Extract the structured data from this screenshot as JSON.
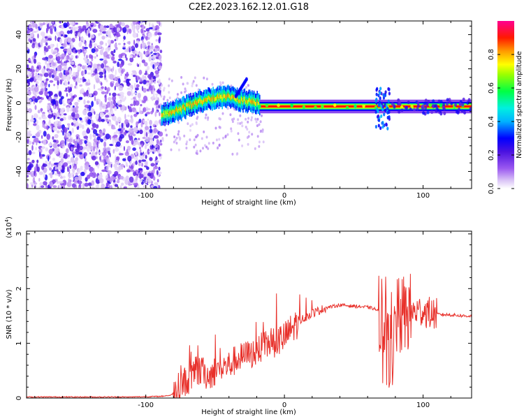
{
  "chart_data": [
    {
      "type": "heatmap",
      "title": "C2E2.2023.162.12.01.G18",
      "xlabel": "Height of straight line (km)",
      "ylabel": "Frequency (Hz)",
      "xlim": [
        -186,
        135
      ],
      "ylim": [
        -50,
        48
      ],
      "x_ticks": [
        -100,
        0,
        100
      ],
      "y_ticks": [
        -40,
        -20,
        0,
        20,
        40
      ],
      "colorbar": {
        "label": "Normalized spectral amplitude",
        "range": [
          0,
          1
        ],
        "ticks": [
          0.0,
          0.2,
          0.4,
          0.6,
          0.8
        ],
        "colormap": [
          "#ffffff",
          "#d9c2f6",
          "#7a1fe0",
          "#0000ff",
          "#00e5ff",
          "#00ff66",
          "#ffff00",
          "#ff7a00",
          "#ff0000",
          "#ff00a0"
        ]
      },
      "regions": [
        {
          "name": "noise",
          "x_range": [
            -186,
            -89
          ],
          "freq_range": [
            -50,
            48
          ],
          "amplitude": [
            0.02,
            0.25
          ]
        },
        {
          "name": "emerging",
          "x_range": [
            -89,
            -18
          ],
          "center_freq": [
            -7,
            -5,
            -3,
            0,
            2,
            3,
            4,
            2,
            1,
            0
          ],
          "amplitude": [
            0.4,
            0.8
          ]
        },
        {
          "name": "carrier",
          "x_range": [
            -18,
            135
          ],
          "center_freq": -2,
          "amplitude": [
            0.8,
            1.0
          ]
        }
      ]
    },
    {
      "type": "line",
      "xlabel": "Height of straight line (km)",
      "ylabel": "SNR (10 * v/v)",
      "multiplier": "(x10",
      "multiplier_exp": "4",
      "multiplier_close": ")",
      "xlim": [
        -186,
        135
      ],
      "ylim": [
        0,
        3.05
      ],
      "x_ticks": [
        -100,
        0,
        100
      ],
      "y_ticks": [
        0,
        1,
        2,
        3
      ],
      "color": "#e8302a",
      "series": [
        {
          "x": [
            -186,
            -150,
            -110,
            -90,
            -82,
            -78,
            -72,
            -65,
            -60,
            -55,
            -50,
            -45,
            -40,
            -35,
            -30,
            -25,
            -20,
            -15,
            -10,
            -5,
            0,
            5,
            10,
            20,
            30,
            40,
            50,
            60,
            65,
            70,
            74,
            77,
            79,
            82,
            85,
            88,
            92,
            95,
            100,
            105,
            110,
            120,
            130,
            135
          ],
          "y": [
            0.02,
            0.02,
            0.02,
            0.03,
            0.05,
            0.15,
            0.3,
            0.4,
            0.5,
            0.4,
            0.5,
            0.55,
            0.6,
            0.7,
            0.75,
            0.8,
            0.85,
            0.95,
            1.0,
            1.05,
            1.1,
            1.25,
            1.4,
            1.55,
            1.65,
            1.7,
            1.68,
            1.66,
            1.63,
            1.55,
            1.45,
            1.25,
            1.35,
            1.45,
            1.5,
            1.55,
            1.55,
            1.58,
            1.6,
            1.55,
            1.53,
            1.52,
            1.5,
            1.5
          ]
        }
      ]
    }
  ]
}
